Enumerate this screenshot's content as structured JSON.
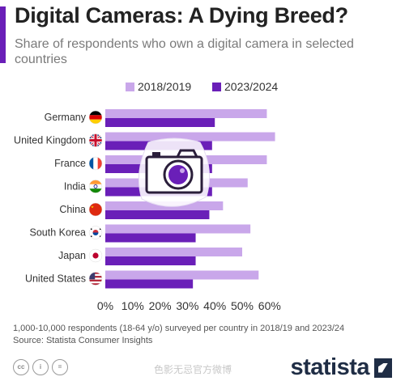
{
  "title": "Digital Cameras: A Dying Breed?",
  "subtitle": "Share of respondents who own a digital camera in selected countries",
  "footnote": "1,000-10,000 respondents (18-64 y/o) surveyed per country in 2018/19 and 2023/24",
  "source": "Source: Statista Consumer Insights",
  "brand": "statista",
  "watermark": "色影无忌官方微博",
  "colors": {
    "accent": "#6a1fb8",
    "series_old": "#c9a7ea",
    "series_new": "#6a1fb8"
  },
  "chart_data": {
    "type": "bar",
    "orientation": "horizontal",
    "categories": [
      "Germany",
      "United Kingdom",
      "France",
      "India",
      "China",
      "South Korea",
      "Japan",
      "United States"
    ],
    "series": [
      {
        "name": "2018/2019",
        "color": "#c9a7ea",
        "values": [
          59,
          62,
          59,
          52,
          43,
          53,
          50,
          56
        ]
      },
      {
        "name": "2023/2024",
        "color": "#6a1fb8",
        "values": [
          40,
          39,
          39,
          39,
          38,
          33,
          33,
          32
        ]
      }
    ],
    "x_ticks": [
      "0%",
      "10%",
      "20%",
      "30%",
      "40%",
      "50%",
      "60%"
    ],
    "xlim": [
      0,
      62
    ],
    "legend_position": "top-center",
    "grid": false,
    "icons": [
      "flag-germany",
      "flag-united-kingdom",
      "flag-france",
      "flag-india",
      "flag-china",
      "flag-south-korea",
      "flag-japan",
      "flag-united-states",
      "camera-icon"
    ]
  }
}
